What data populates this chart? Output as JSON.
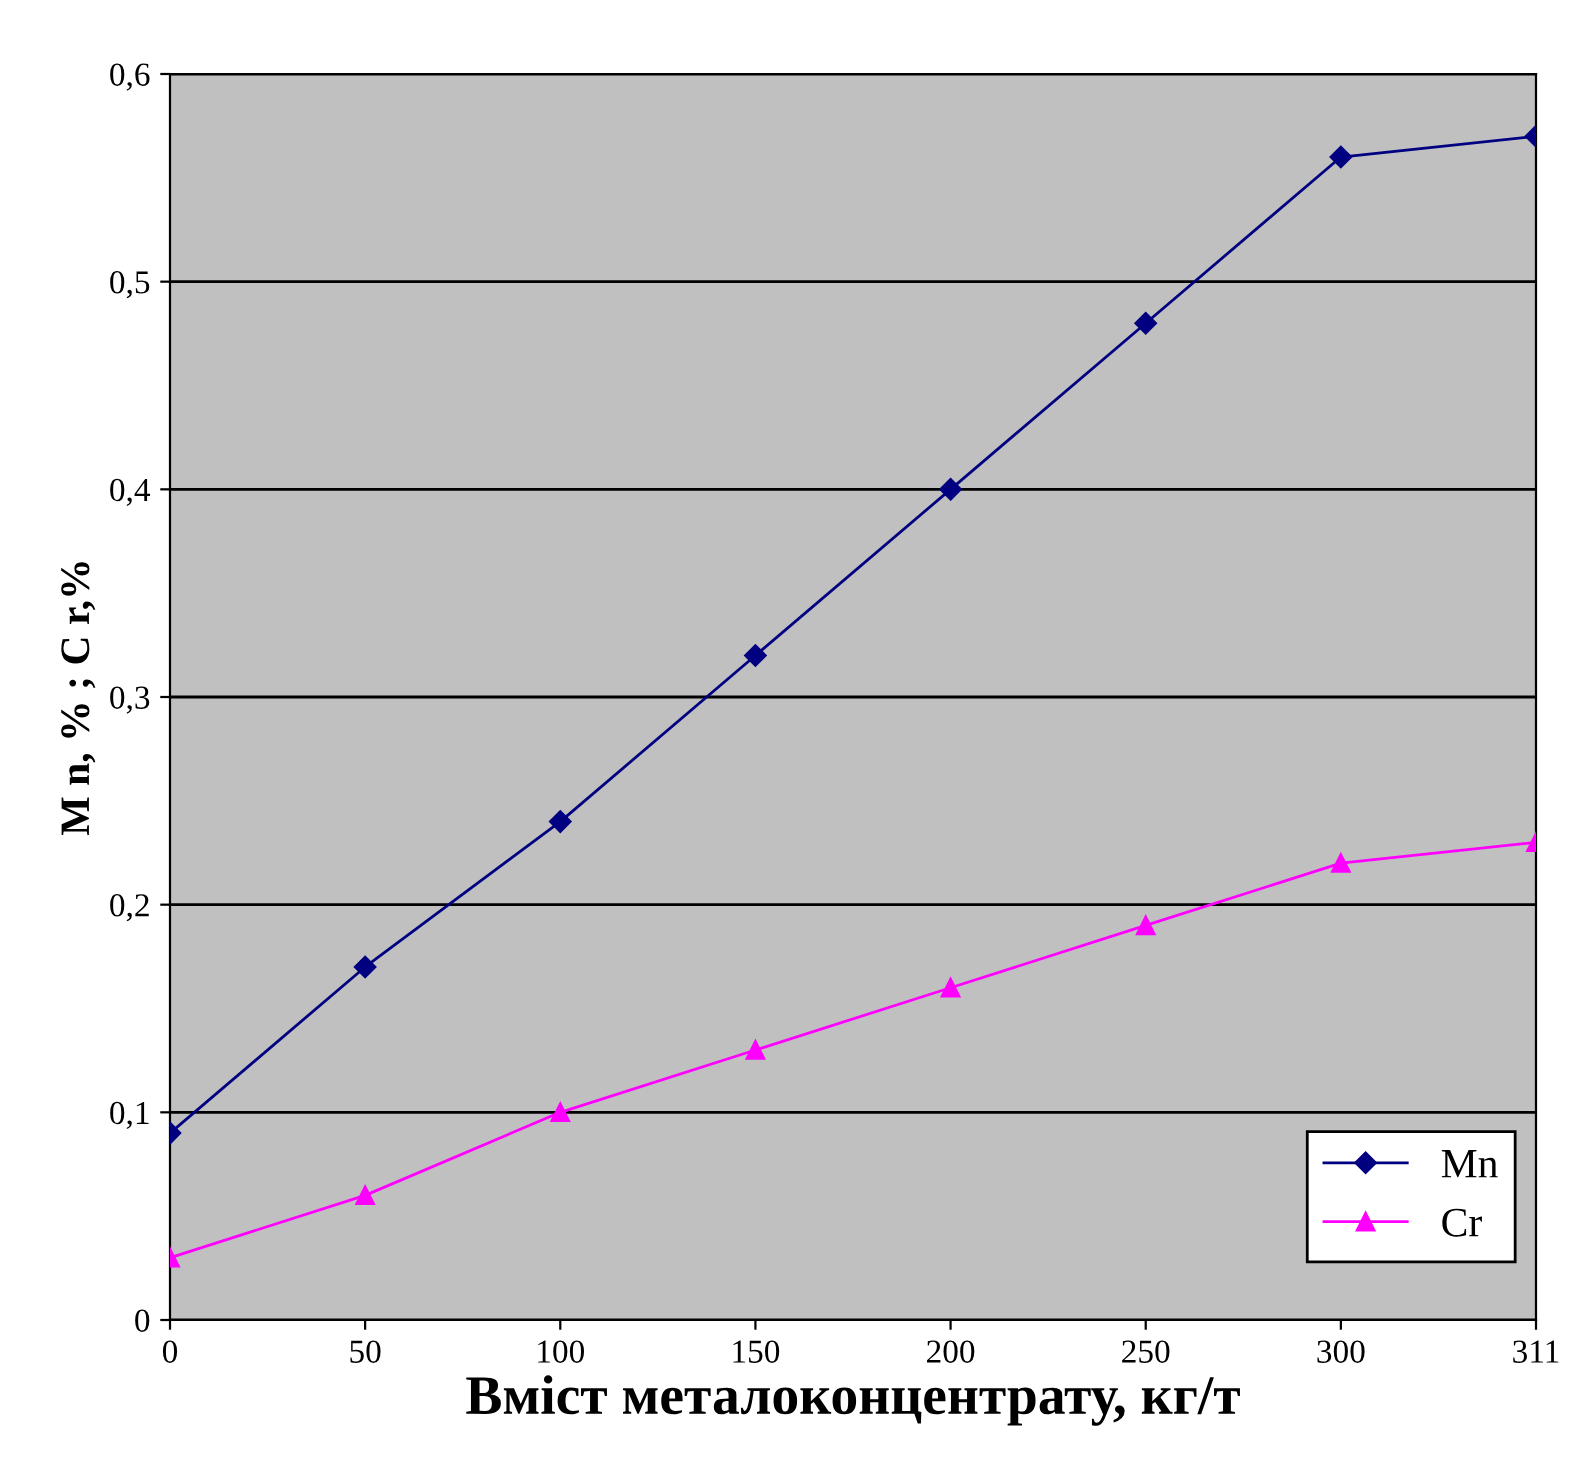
{
  "chart_data": {
    "type": "line",
    "xlabel": "Вміст металоконцентрату, кг/т",
    "ylabel": "M n, % ; C r,%",
    "categories": [
      "0",
      "50",
      "100",
      "150",
      "200",
      "250",
      "300",
      "311"
    ],
    "series": [
      {
        "name": "Mn",
        "color": "#000080",
        "marker": "diamond",
        "values": [
          0.09,
          0.17,
          0.24,
          0.32,
          0.4,
          0.48,
          0.56,
          0.57
        ]
      },
      {
        "name": "Cr",
        "color": "#ff00ff",
        "marker": "triangle",
        "values": [
          0.03,
          0.06,
          0.1,
          0.13,
          0.16,
          0.19,
          0.22,
          0.23
        ]
      }
    ],
    "ylim": [
      0,
      0.6
    ],
    "yticks": [
      {
        "value": 0,
        "label": "0"
      },
      {
        "value": 0.1,
        "label": "0,1"
      },
      {
        "value": 0.2,
        "label": "0,2"
      },
      {
        "value": 0.3,
        "label": "0,3"
      },
      {
        "value": 0.4,
        "label": "0,4"
      },
      {
        "value": 0.5,
        "label": "0,5"
      },
      {
        "value": 0.6,
        "label": "0,6"
      }
    ],
    "grid": "y",
    "legend": "bottom right",
    "line_style": "solid"
  }
}
